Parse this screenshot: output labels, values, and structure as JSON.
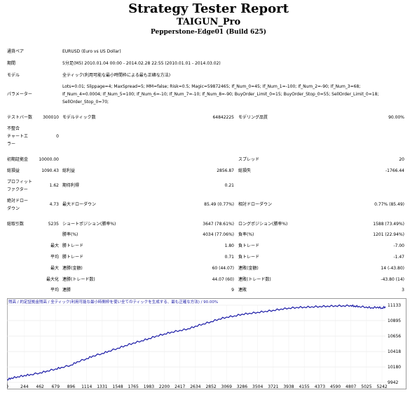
{
  "report": {
    "title": "Strategy Tester Report",
    "ea_name": "TAIGUN_Pro",
    "server": "Pepperstone-Edge01 (Build 625)"
  },
  "info": {
    "symbol_label": "通貨ペア",
    "symbol_value": "EURUSD (Euro vs US Dollar)",
    "period_label": "期間",
    "period_value": "5分足(M5) 2010.01.04 00:00 - 2014.02.28 22:55 (2010.01.01 - 2014.03.02)",
    "model_label": "モデル",
    "model_value": "全ティック(利用可能な最小時間枠による最も正確な方法)",
    "params_label": "パラメーター",
    "params_value": "Lots=0.01; Slippage=4; MaxSpread=5; MM=false; Risk=0.5; Magic=59872465; If_Num_0=45; If_Num_1=-100; If_Num_2=-90; If_Num_3=68; If_Num_4=0.0004; If_Num_5=100; If_Num_6=-10; If_Num_7=-10; If_Num_8=-90; BuyOrder_Limit_0=15; BuyOrder_Stop_0=55; SellOrder_Limit_0=18; SellOrder_Stop_0=70;"
  },
  "stats": {
    "bars_label": "テストバー数",
    "bars_value": "300010",
    "ticks_label": "モデルティック数",
    "ticks_value": "64842225",
    "quality_label": "モデリング品質",
    "quality_value": "90.00%",
    "mismatch_label1": "不整合",
    "mismatch_label2": "チャートエ",
    "mismatch_label3": "ラー",
    "mismatch_value": "0",
    "deposit_label": "初期証拠金",
    "deposit_value": "10000.00",
    "spread_label": "スプレッド",
    "spread_value": "20",
    "net_label": "総損益",
    "net_value": "1090.43",
    "gross_profit_label": "総利益",
    "gross_profit_value": "2856.87",
    "gross_loss_label": "総損失",
    "gross_loss_value": "-1766.44",
    "pf_label1": "プロフィット",
    "pf_label2": "ファクター",
    "pf_value": "1.62",
    "payoff_label": "期待利得",
    "payoff_value": "0.21",
    "abs_dd_label1": "絶対ドロー",
    "abs_dd_label2": "ダウン",
    "abs_dd_value": "4.73",
    "max_dd_label": "最大ドローダウン",
    "max_dd_value": "85.49 (0.77%)",
    "rel_dd_label": "相対ドローダウン",
    "rel_dd_value": "0.77% (85.49)",
    "total_trades_label": "総取引数",
    "total_trades_value": "5235",
    "short_label": "ショートポジション(勝率%)",
    "short_value": "3647 (78.61%)",
    "long_label": "ロングポジション(勝率%)",
    "long_value": "1588 (73.49%)",
    "win_label": "勝率(%)",
    "win_value": "4034 (77.06%)",
    "loss_label": "負率(%)",
    "loss_value": "1201 (22.94%)",
    "max_word": "最大",
    "avg_word": "平均",
    "maximal_word": "最大化",
    "largest_win_label": "勝トレード",
    "largest_win_value": "1.80",
    "largest_loss_label": "負トレード",
    "largest_loss_value": "-7.00",
    "avg_win_label": "勝トレード",
    "avg_win_value": "0.71",
    "avg_loss_label": "負トレード",
    "avg_loss_value": "-1.47",
    "cons_wins_label": "連勝(金額)",
    "cons_wins_value": "60 (44.07)",
    "cons_losses_label": "連敗(金額)",
    "cons_losses_value": "14 (-43.80)",
    "max_cons_profit_label": "連勝(トレード数)",
    "max_cons_profit_value": "44.07 (60)",
    "max_cons_loss_label": "連敗(トレード数)",
    "max_cons_loss_value": "-43.80 (14)",
    "avg_cons_wins_label": "連勝",
    "avg_cons_wins_value": "9",
    "avg_cons_losses_label": "連敗",
    "avg_cons_losses_value": "3"
  },
  "chart_data": {
    "type": "line",
    "legend_text": "残高 / 約定証拠金残高 / 全ティック(利用可能な最小時間枠を使い全てのティックを生成する、最も正確な方法) / 90.00%",
    "x_ticks": [
      "0",
      "244",
      "462",
      "679",
      "896",
      "1114",
      "1331",
      "1548",
      "1765",
      "1983",
      "2200",
      "2417",
      "2634",
      "2852",
      "3069",
      "3286",
      "3504",
      "3721",
      "3938",
      "4155",
      "4373",
      "4590",
      "4807",
      "5025",
      "5242"
    ],
    "y_ticks": [
      "11133",
      "10895",
      "10656",
      "10418",
      "10180",
      "9942"
    ],
    "ylim": [
      9942,
      11133
    ],
    "xlim": [
      0,
      5290
    ],
    "series": [
      {
        "x": [
          0,
          60,
          150,
          244,
          330,
          462,
          560,
          679,
          760,
          896,
          980,
          1114,
          1200,
          1331,
          1420,
          1548,
          1650,
          1765,
          1880,
          1983,
          2090,
          2200,
          2300,
          2417,
          2530,
          2634,
          2740,
          2852,
          2960,
          3069,
          3180,
          3286,
          3390,
          3504,
          3610,
          3721,
          3830,
          3938,
          4050,
          4155,
          4260,
          4373,
          4480,
          4590,
          4700,
          4807,
          4860,
          4920,
          5025,
          5100,
          5180,
          5242,
          5290
        ],
        "y": [
          9985,
          10010,
          10030,
          10050,
          10065,
          10090,
          10120,
          10150,
          10175,
          10210,
          10260,
          10310,
          10350,
          10390,
          10425,
          10470,
          10510,
          10550,
          10585,
          10620,
          10660,
          10690,
          10720,
          10745,
          10770,
          10810,
          10845,
          10880,
          10920,
          10950,
          10970,
          10995,
          11010,
          11025,
          11040,
          11055,
          11075,
          11090,
          11100,
          11105,
          11110,
          11115,
          11120,
          11125,
          11125,
          11130,
          11120,
          11115,
          11105,
          11095,
          11105,
          11090,
          11110
        ],
        "color": "#1a1aa6"
      }
    ]
  }
}
